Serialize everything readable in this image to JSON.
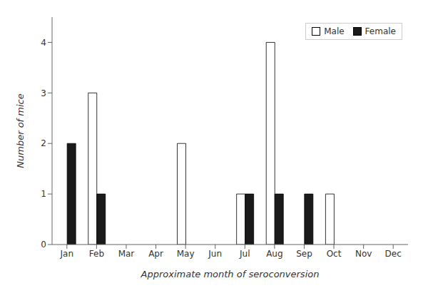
{
  "chart_data": {
    "type": "bar",
    "categories": [
      "Jan",
      "Feb",
      "Mar",
      "Apr",
      "May",
      "Jun",
      "Jul",
      "Aug",
      "Sep",
      "Oct",
      "Nov",
      "Dec"
    ],
    "series": [
      {
        "name": "Male",
        "color": "#ffffff",
        "values": [
          0,
          3,
          0,
          0,
          2,
          0,
          1,
          4,
          0,
          1,
          0,
          0
        ]
      },
      {
        "name": "Female",
        "color": "#1a1a1a",
        "values": [
          2,
          1,
          0,
          0,
          0,
          0,
          1,
          1,
          1,
          0,
          0,
          0
        ]
      }
    ],
    "xlabel": "Approximate month of seroconversion",
    "ylabel": "Number of mice",
    "ylim": [
      0,
      4.5
    ],
    "yticks": [
      0,
      1,
      2,
      3,
      4
    ],
    "legend": "upper right",
    "grid": false
  }
}
